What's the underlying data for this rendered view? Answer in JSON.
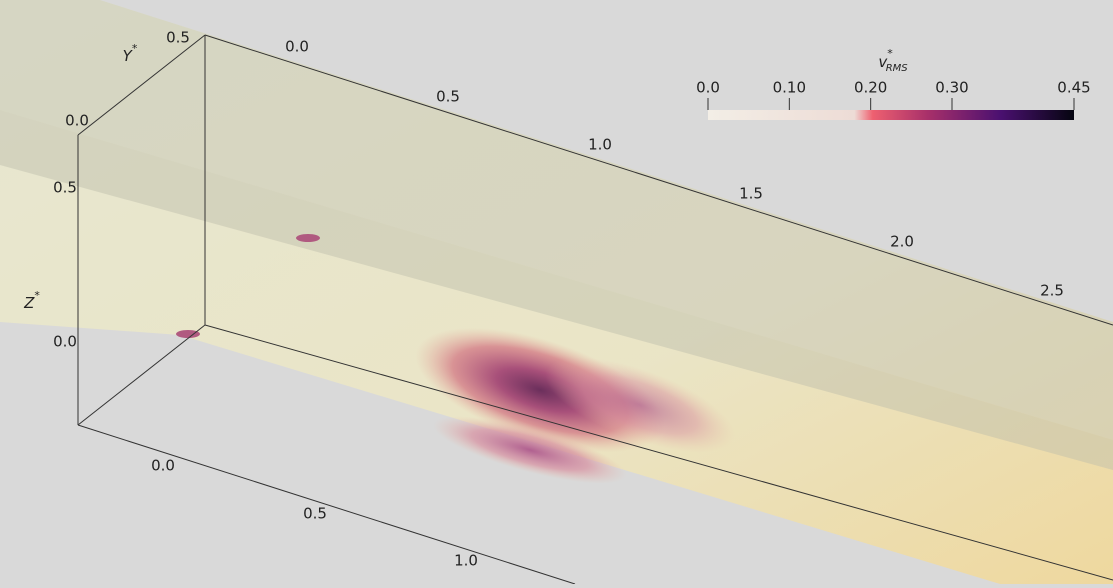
{
  "colorbar": {
    "title": {
      "symbol": "v",
      "superscript": "*",
      "subscript": "RMS"
    },
    "range": [
      0,
      0.45
    ],
    "ticks": [
      {
        "value": 0,
        "label": "0.0"
      },
      {
        "value": 0.1,
        "label": "0.10"
      },
      {
        "value": 0.2,
        "label": "0.20"
      },
      {
        "value": 0.3,
        "label": "0.30"
      },
      {
        "value": 0.45,
        "label": "0.45"
      }
    ]
  },
  "x_axis_top": {
    "ticks": [
      "0.0",
      "0.5",
      "1.0",
      "1.5",
      "2.0",
      "2.5"
    ]
  },
  "x_axis_bottom": {
    "ticks": [
      "0.0",
      "0.5",
      "1.0"
    ]
  },
  "y_axis": {
    "label": "Y",
    "superscript": "*",
    "ticks": [
      "0.5",
      "0.0"
    ]
  },
  "z_axis": {
    "label": "Z",
    "superscript": "*",
    "ticks": [
      "0.5",
      "0.0"
    ]
  }
}
